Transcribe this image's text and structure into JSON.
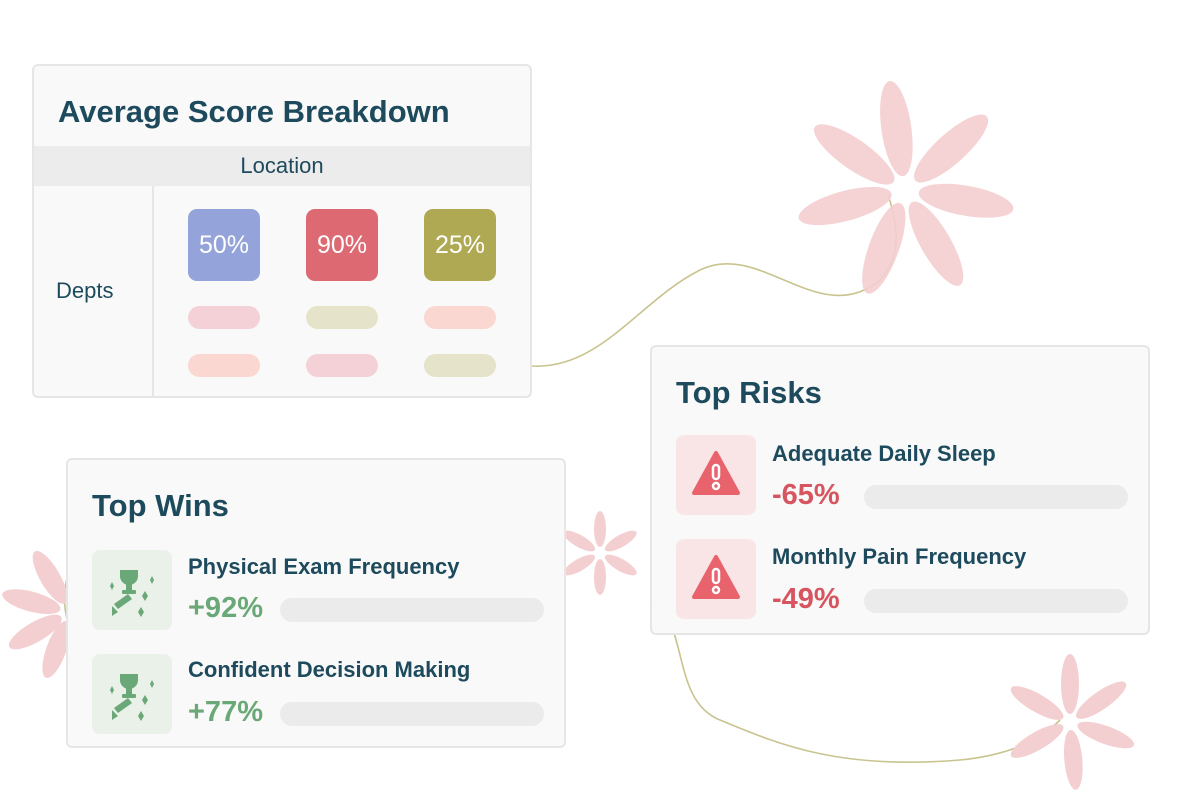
{
  "breakdown": {
    "title": "Average Score Breakdown",
    "column_header": "Location",
    "row_label": "Depts",
    "scores": [
      {
        "value": "50%",
        "color": "#94a3d9"
      },
      {
        "value": "90%",
        "color": "#dd6a73"
      },
      {
        "value": "25%",
        "color": "#b0a954"
      }
    ],
    "placeholder_colors": [
      "#f3d1d6",
      "#e5e3c9",
      "#fbd7d1"
    ]
  },
  "wins": {
    "title": "Top Wins",
    "accent": "#6aa877",
    "icon": "trophy-sparkle-icon",
    "items": [
      {
        "label": "Physical Exam Frequency",
        "value": "+92%"
      },
      {
        "label": "Confident Decision Making",
        "value": "+77%"
      }
    ]
  },
  "risks": {
    "title": "Top Risks",
    "accent": "#d7555f",
    "icon": "warning-triangle-icon",
    "items": [
      {
        "label": "Adequate Daily Sleep",
        "value": "-65%"
      },
      {
        "label": "Monthly Pain Frequency",
        "value": "-49%"
      }
    ]
  }
}
